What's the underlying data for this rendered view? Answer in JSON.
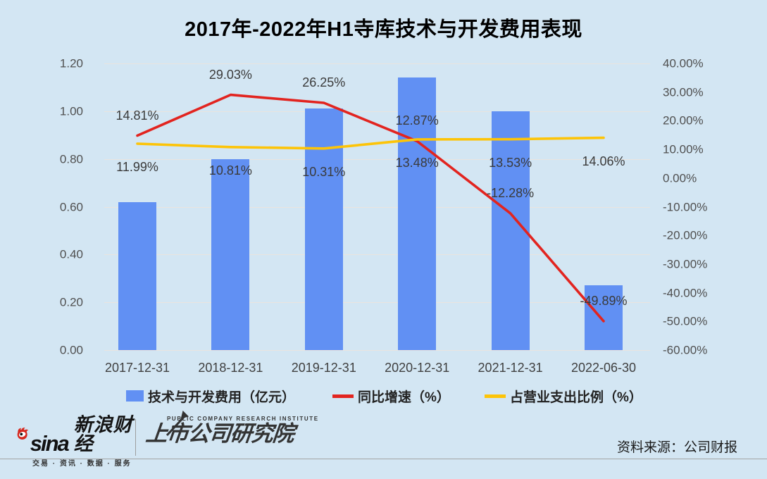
{
  "title": "2017年-2022年H1寺库技术与开发费用表现",
  "chart_data": {
    "type": "bar",
    "title": "2017年-2022年H1寺库技术与开发费用表现",
    "categories": [
      "2017-12-31",
      "2018-12-31",
      "2019-12-31",
      "2020-12-31",
      "2021-12-31",
      "2022-06-30"
    ],
    "series": [
      {
        "name": "技术与开发费用（亿元）",
        "type": "bar",
        "axis": "left",
        "color": "#6190f3",
        "values": [
          0.62,
          0.8,
          1.01,
          1.14,
          1.0,
          0.27
        ]
      },
      {
        "name": "同比增速（%）",
        "type": "line",
        "axis": "right",
        "color": "#e2241f",
        "values": [
          14.81,
          29.03,
          26.25,
          12.87,
          -12.28,
          -49.89
        ],
        "labels": [
          "14.81%",
          "29.03%",
          "26.25%",
          "12.87%",
          "-12.28%",
          "-49.89%"
        ]
      },
      {
        "name": "占营业支出比例（%）",
        "type": "line",
        "axis": "right",
        "color": "#fdc408",
        "values": [
          11.99,
          10.81,
          10.31,
          13.48,
          13.53,
          14.06
        ],
        "labels": [
          "11.99%",
          "10.81%",
          "10.31%",
          "13.48%",
          "13.53%",
          "14.06%"
        ]
      }
    ],
    "left_axis": {
      "min": 0.0,
      "max": 1.2,
      "ticks": [
        "1.20",
        "1.00",
        "0.80",
        "0.60",
        "0.40",
        "0.20",
        "0.00"
      ]
    },
    "right_axis": {
      "min": -60.0,
      "max": 40.0,
      "ticks": [
        "40.00%",
        "30.00%",
        "20.00%",
        "10.00%",
        "0.00%",
        "-10.00%",
        "-20.00%",
        "-30.00%",
        "-40.00%",
        "-50.00%",
        "-60.00%"
      ]
    },
    "grid": true,
    "legend_position": "bottom",
    "background_color": "#d3e6f3"
  },
  "footer": {
    "sina": {
      "brand": "sina",
      "name": "新浪财经",
      "tagline": "交易 · 资讯 · 数据 · 服务"
    },
    "institute": {
      "en": "PUBLIC COMPANY RESEARCH INSTITUTE",
      "cn": "上市公司研究院"
    },
    "source": "资料来源：公司财报"
  }
}
